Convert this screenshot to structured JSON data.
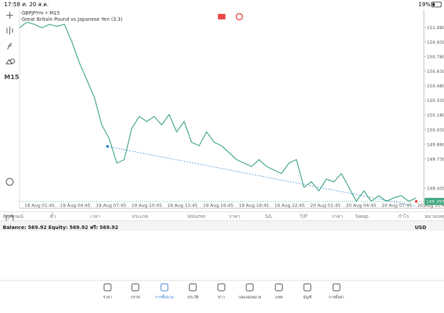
{
  "status_bar": {
    "time": "17:58",
    "date": "ศ. 20 ส.ค.",
    "battery": "19%"
  },
  "chart": {
    "symbol": "GBPJPYm • M15",
    "description": "Great Britain Pound vs Japanese Yen (3.3)",
    "timeframe": "M15",
    "type": "line",
    "color": "#3aa57a",
    "ylim": [
      149.223,
      151.261
    ],
    "yticks": [
      {
        "value": 151.08,
        "label": "151.080"
      },
      {
        "value": 150.93,
        "label": "150.930"
      },
      {
        "value": 150.78,
        "label": "150.780"
      },
      {
        "value": 150.63,
        "label": "150.630"
      },
      {
        "value": 150.48,
        "label": "150.480"
      },
      {
        "value": 150.33,
        "label": "150.330"
      },
      {
        "value": 150.18,
        "label": "150.180"
      },
      {
        "value": 150.03,
        "label": "150.030"
      },
      {
        "value": 149.88,
        "label": "149.880"
      },
      {
        "value": 149.73,
        "label": "149.730"
      },
      {
        "value": 149.43,
        "label": "149.430"
      }
    ],
    "current_price": 149.293,
    "xlabels": [
      "19 Aug 01:45",
      "19 Aug 04:45",
      "19 Aug 07:45",
      "19 Aug 10:45",
      "19 Aug 13:45",
      "19 Aug 16:45",
      "19 Aug 19:45",
      "19 Aug 22:45",
      "20 Aug 01:45",
      "20 Aug 04:45",
      "20 Aug 07:45",
      "20 Aug 10:45"
    ],
    "values": [
      151.076,
      151.133,
      151.111,
      151.076,
      151.111,
      151.09,
      151.111,
      150.933,
      150.719,
      150.541,
      150.363,
      150.078,
      149.936,
      149.686,
      149.722,
      150.042,
      150.164,
      150.114,
      150.164,
      150.078,
      150.185,
      150.007,
      150.114,
      149.9,
      149.864,
      150.007,
      149.9,
      149.864,
      149.793,
      149.722,
      149.686,
      149.651,
      149.722,
      149.651,
      149.615,
      149.579,
      149.686,
      149.722,
      149.437,
      149.494,
      149.401,
      149.522,
      149.494,
      149.579,
      149.437,
      149.294,
      149.401,
      149.294,
      149.351,
      149.294,
      149.33,
      149.351,
      149.294,
      149.33
    ]
  },
  "table_header": [
    "สัญลักษณ์",
    "ตั๋ว",
    "เวลา",
    "ประเภท",
    "Volume",
    "ราคา",
    "S/L",
    "T/P",
    "ราคา",
    "Swap",
    "กำไร",
    "หมายเหตุ"
  ],
  "balance": {
    "text": "Balance: 569.92 Equity: 569.92 ฟรี: 569.92",
    "currency": "USD"
  },
  "nav": [
    "ราคา",
    "กราฟ",
    "การซื้อขาย",
    "ประวัติ",
    "ข่าว",
    "กล่องจดหมาย",
    "แชท",
    "บัญชี",
    "การตั้งค่า"
  ]
}
